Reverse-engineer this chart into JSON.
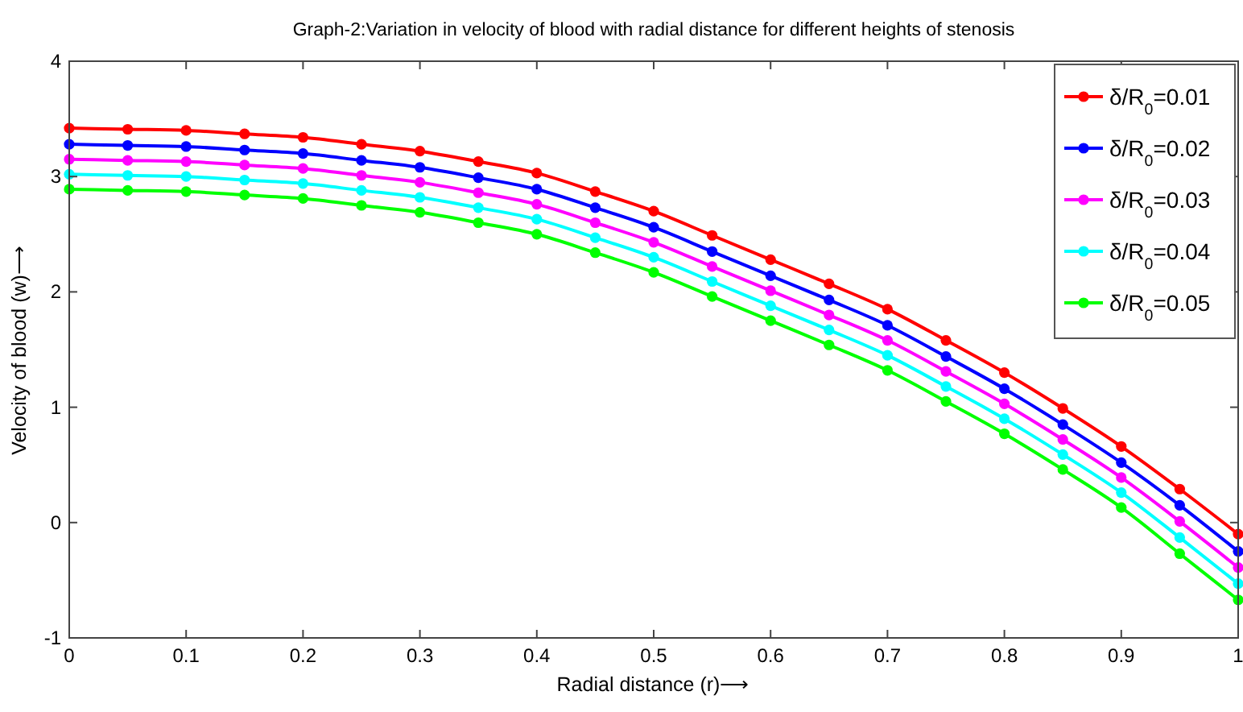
{
  "chart_data": {
    "type": "line",
    "title": "Graph-2:Variation in velocity of blood with radial distance for different heights of stenosis",
    "xlabel": "Radial distance (r)⟶",
    "ylabel": "Velocity of blood (w)⟶",
    "x": [
      0,
      0.05,
      0.1,
      0.15,
      0.2,
      0.25,
      0.3,
      0.35,
      0.4,
      0.45,
      0.5,
      0.55,
      0.6,
      0.65,
      0.7,
      0.75,
      0.8,
      0.85,
      0.9,
      0.95,
      1
    ],
    "series": [
      {
        "name": "δ/R$_{0}$=0.01",
        "color": "#ff0000",
        "values": [
          3.42,
          3.41,
          3.4,
          3.37,
          3.34,
          3.28,
          3.22,
          3.13,
          3.03,
          2.87,
          2.7,
          2.49,
          2.28,
          2.07,
          1.85,
          1.58,
          1.3,
          0.99,
          0.66,
          0.29,
          -0.1
        ]
      },
      {
        "name": "δ/R$_{0}$=0.02",
        "color": "#0000ff",
        "values": [
          3.28,
          3.27,
          3.26,
          3.23,
          3.2,
          3.14,
          3.08,
          2.99,
          2.89,
          2.73,
          2.56,
          2.35,
          2.14,
          1.93,
          1.71,
          1.44,
          1.16,
          0.85,
          0.52,
          0.15,
          -0.25
        ]
      },
      {
        "name": "δ/R$_{0}$=0.03",
        "color": "#ff00ff",
        "values": [
          3.15,
          3.14,
          3.13,
          3.1,
          3.07,
          3.01,
          2.95,
          2.86,
          2.76,
          2.6,
          2.43,
          2.22,
          2.01,
          1.8,
          1.58,
          1.31,
          1.03,
          0.72,
          0.39,
          0.01,
          -0.39
        ]
      },
      {
        "name": "δ/R$_{0}$=0.04",
        "color": "#00ffff",
        "values": [
          3.02,
          3.01,
          3.0,
          2.97,
          2.94,
          2.88,
          2.82,
          2.73,
          2.63,
          2.47,
          2.3,
          2.09,
          1.88,
          1.67,
          1.45,
          1.18,
          0.9,
          0.59,
          0.26,
          -0.13,
          -0.53
        ]
      },
      {
        "name": "δ/R$_{0}$=0.05",
        "color": "#00ff00",
        "values": [
          2.89,
          2.88,
          2.87,
          2.84,
          2.81,
          2.75,
          2.69,
          2.6,
          2.5,
          2.34,
          2.17,
          1.96,
          1.75,
          1.54,
          1.32,
          1.05,
          0.77,
          0.46,
          0.13,
          -0.27,
          -0.67
        ]
      }
    ],
    "xlim": [
      0,
      1
    ],
    "xticks": [
      0,
      0.1,
      0.2,
      0.3,
      0.4,
      0.5,
      0.6,
      0.7,
      0.8,
      0.9,
      1
    ],
    "ylim": [
      -1,
      4
    ],
    "yticks": [
      -1,
      0,
      1,
      2,
      3,
      4
    ],
    "legend": "top right",
    "marker": "circle",
    "line_style": "solid",
    "grid": false
  }
}
